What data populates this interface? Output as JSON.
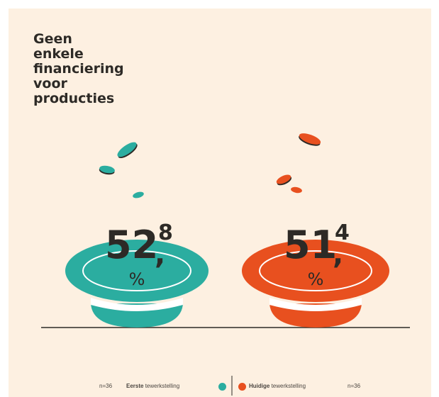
{
  "chart_data": {
    "type": "pictorial",
    "title": "Geen\nenkele\nfinanciering\nvoor\nproducties",
    "unit": "%",
    "series": [
      {
        "name": "Eerste tewerkstelling",
        "value_int": "52",
        "value_dec": "8",
        "value": 52.8,
        "n": "n=36",
        "color": "#2bada0"
      },
      {
        "name": "Huidige tewerkstelling",
        "value_int": "51",
        "value_dec": "4",
        "value": 51.4,
        "n": "n=36",
        "color": "#e8501f"
      }
    ],
    "legend": {
      "left_n": "n=36",
      "left_bold": "Eerste",
      "left_rest": " tewerkstelling",
      "right_bold": "Huidige",
      "right_rest": " tewerkstelling",
      "right_n": "n=36"
    }
  }
}
